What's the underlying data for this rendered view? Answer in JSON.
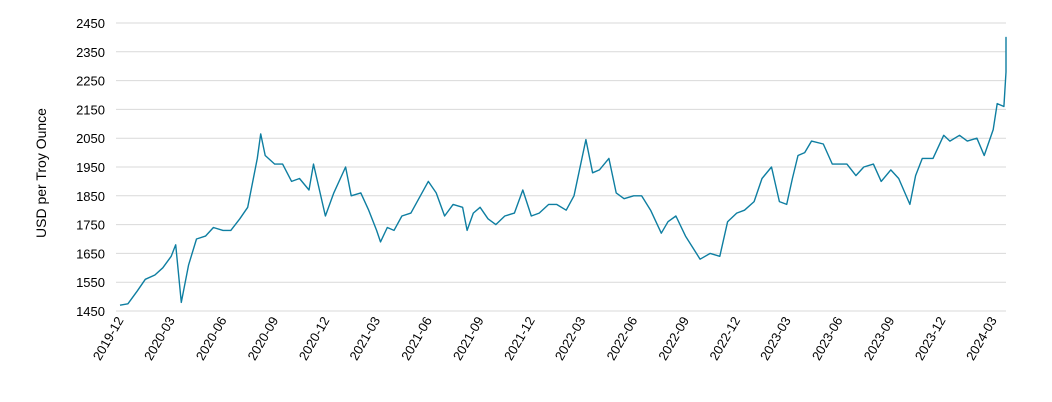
{
  "chart_data": {
    "type": "line",
    "title": "",
    "xlabel": "",
    "ylabel": "USD per Troy Ounce",
    "ylim": [
      1450,
      2450
    ],
    "yticks": [
      1450,
      1550,
      1650,
      1750,
      1850,
      1950,
      2050,
      2150,
      2250,
      2350,
      2450
    ],
    "xticks": [
      "2019-12",
      "2020-03",
      "2020-06",
      "2020-09",
      "2020-12",
      "2021-03",
      "2021-06",
      "2021-09",
      "2021-12",
      "2022-03",
      "2022-06",
      "2022-09",
      "2022-12",
      "2023-03",
      "2023-06",
      "2023-09",
      "2023-12",
      "2024-03"
    ],
    "grid": "horizontal",
    "legend": "none",
    "line_color": "#0e7ea1",
    "series": [
      {
        "x": [
          "2019-12-01",
          "2019-12-15",
          "2020-01-01",
          "2020-01-15",
          "2020-02-01",
          "2020-02-15",
          "2020-03-01",
          "2020-03-09",
          "2020-03-19",
          "2020-04-01",
          "2020-04-15",
          "2020-05-01",
          "2020-05-15",
          "2020-06-01",
          "2020-06-15",
          "2020-07-01",
          "2020-07-15",
          "2020-08-01",
          "2020-08-07",
          "2020-08-15",
          "2020-09-01",
          "2020-09-15",
          "2020-10-01",
          "2020-10-15",
          "2020-11-01",
          "2020-11-09",
          "2020-11-30",
          "2020-12-15",
          "2021-01-05",
          "2021-01-15",
          "2021-02-01",
          "2021-02-15",
          "2021-03-01",
          "2021-03-08",
          "2021-03-20",
          "2021-04-01",
          "2021-04-15",
          "2021-05-01",
          "2021-05-15",
          "2021-06-01",
          "2021-06-15",
          "2021-06-30",
          "2021-07-15",
          "2021-08-01",
          "2021-08-09",
          "2021-08-20",
          "2021-09-01",
          "2021-09-15",
          "2021-09-29",
          "2021-10-15",
          "2021-11-01",
          "2021-11-16",
          "2021-12-01",
          "2021-12-15",
          "2022-01-01",
          "2022-01-15",
          "2022-02-01",
          "2022-02-15",
          "2022-03-08",
          "2022-03-20",
          "2022-04-01",
          "2022-04-18",
          "2022-05-01",
          "2022-05-15",
          "2022-06-01",
          "2022-06-15",
          "2022-07-01",
          "2022-07-20",
          "2022-08-01",
          "2022-08-15",
          "2022-09-01",
          "2022-09-27",
          "2022-10-15",
          "2022-11-01",
          "2022-11-15",
          "2022-12-01",
          "2022-12-15",
          "2023-01-01",
          "2023-01-15",
          "2023-02-01",
          "2023-02-15",
          "2023-02-28",
          "2023-03-10",
          "2023-03-20",
          "2023-04-01",
          "2023-04-13",
          "2023-05-04",
          "2023-05-20",
          "2023-06-01",
          "2023-06-15",
          "2023-07-01",
          "2023-07-15",
          "2023-08-01",
          "2023-08-15",
          "2023-09-01",
          "2023-09-15",
          "2023-10-05",
          "2023-10-15",
          "2023-10-27",
          "2023-11-15",
          "2023-12-04",
          "2023-12-15",
          "2024-01-01",
          "2024-01-15",
          "2024-02-01",
          "2024-02-14",
          "2024-03-01",
          "2024-03-08",
          "2024-03-20",
          "2024-04-01",
          "2024-04-12",
          "2024-04-20"
        ],
        "values": [
          1470,
          1475,
          1520,
          1560,
          1575,
          1600,
          1640,
          1680,
          1480,
          1610,
          1700,
          1710,
          1740,
          1730,
          1730,
          1770,
          1810,
          1980,
          2065,
          1990,
          1960,
          1960,
          1900,
          1910,
          1870,
          1960,
          1780,
          1860,
          1950,
          1850,
          1860,
          1800,
          1730,
          1690,
          1740,
          1730,
          1780,
          1790,
          1840,
          1900,
          1860,
          1780,
          1820,
          1810,
          1730,
          1790,
          1810,
          1770,
          1750,
          1780,
          1790,
          1870,
          1780,
          1790,
          1820,
          1820,
          1800,
          1850,
          2045,
          1930,
          1940,
          1980,
          1860,
          1840,
          1850,
          1850,
          1800,
          1720,
          1760,
          1780,
          1710,
          1630,
          1650,
          1640,
          1760,
          1790,
          1800,
          1830,
          1910,
          1950,
          1830,
          1820,
          1910,
          1990,
          2000,
          2040,
          2030,
          1960,
          1960,
          1960,
          1920,
          1950,
          1960,
          1900,
          1940,
          1910,
          1820,
          1920,
          1980,
          1980,
          2060,
          2040,
          2060,
          2040,
          2050,
          1990,
          2080,
          2170,
          2160,
          2280,
          2400,
          2390
        ]
      }
    ]
  }
}
